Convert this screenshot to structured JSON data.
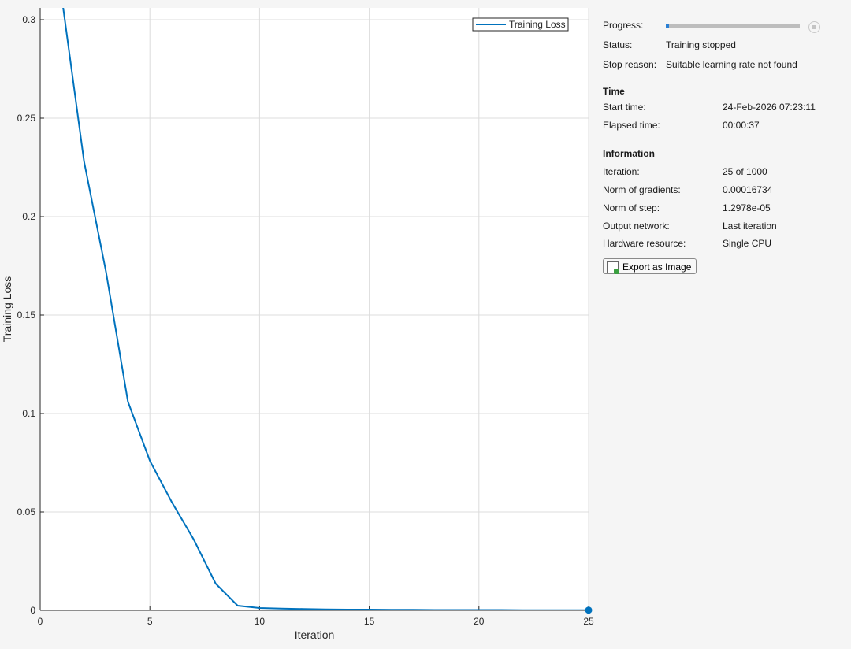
{
  "chart_data": {
    "type": "line",
    "xlabel": "Iteration",
    "ylabel": "Training Loss",
    "xlim": [
      0,
      25
    ],
    "ylim": [
      0,
      0.306
    ],
    "xticks": [
      "0",
      "5",
      "10",
      "15",
      "20",
      "25"
    ],
    "yticks": [
      "0",
      "0.05",
      "0.1",
      "0.15",
      "0.2",
      "0.25",
      "0.3"
    ],
    "grid": true,
    "legend_placement": "top-right",
    "line_color": "#0072bd",
    "series": [
      {
        "name": "Training Loss",
        "x": [
          1,
          2,
          3,
          4,
          5,
          6,
          7,
          8,
          9,
          10,
          11,
          12,
          13,
          14,
          15,
          16,
          17,
          18,
          19,
          20,
          21,
          22,
          23,
          24,
          25
        ],
        "y": [
          0.31,
          0.228,
          0.172,
          0.106,
          0.076,
          0.055,
          0.036,
          0.0136,
          0.0024,
          0.0012,
          0.0009,
          0.0007,
          0.0005,
          0.0004,
          0.0004,
          0.0003,
          0.0003,
          0.0002,
          0.0002,
          0.0002,
          0.0002,
          0.0001,
          0.0001,
          0.0001,
          0.0001
        ]
      }
    ]
  },
  "panel": {
    "progress_label": "Progress:",
    "progress_fraction": 0.025,
    "status_label": "Status:",
    "status_value": "Training stopped",
    "stop_reason_label": "Stop reason:",
    "stop_reason_value": "Suitable learning rate not found",
    "time_header": "Time",
    "start_time_label": "Start time:",
    "start_time_value": "24-Feb-2026 07:23:11",
    "elapsed_label": "Elapsed time:",
    "elapsed_value": "00:00:37",
    "info_header": "Information",
    "info": [
      {
        "label": "Iteration:",
        "value": "25 of 1000"
      },
      {
        "label": "Norm of gradients:",
        "value": "0.00016734"
      },
      {
        "label": "Norm of step:",
        "value": "1.2978e-05"
      },
      {
        "label": "Output network:",
        "value": "Last iteration"
      },
      {
        "label": "Hardware resource:",
        "value": "Single CPU"
      }
    ],
    "export_label": "Export as Image"
  }
}
